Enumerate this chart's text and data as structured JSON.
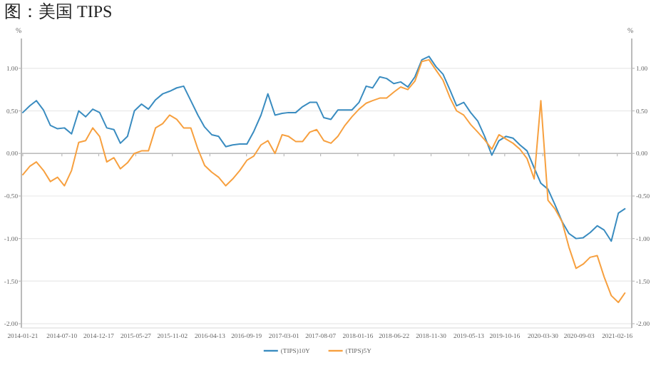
{
  "chart_data": {
    "type": "line",
    "title": "图：美国 TIPS",
    "ylabel": "%",
    "y2label": "%",
    "x": [
      "2014-01-21",
      "2014-02-21",
      "2014-03-21",
      "2014-04-21",
      "2014-05-21",
      "2014-06-21",
      "2014-07-21",
      "2014-08-21",
      "2014-09-21",
      "2014-10-21",
      "2014-11-21",
      "2014-12-21",
      "2015-01-21",
      "2015-02-21",
      "2015-03-21",
      "2015-04-21",
      "2015-05-21",
      "2015-06-21",
      "2015-07-21",
      "2015-08-21",
      "2015-09-21",
      "2015-10-21",
      "2015-11-21",
      "2015-12-21",
      "2016-01-21",
      "2016-02-21",
      "2016-03-21",
      "2016-04-21",
      "2016-05-21",
      "2016-06-21",
      "2016-07-21",
      "2016-08-21",
      "2016-09-21",
      "2016-10-21",
      "2016-11-21",
      "2016-12-21",
      "2017-01-21",
      "2017-02-21",
      "2017-03-21",
      "2017-04-21",
      "2017-05-21",
      "2017-06-21",
      "2017-07-21",
      "2017-08-21",
      "2017-09-21",
      "2017-10-21",
      "2017-11-21",
      "2017-12-21",
      "2018-01-21",
      "2018-02-21",
      "2018-03-21",
      "2018-04-21",
      "2018-05-21",
      "2018-06-21",
      "2018-07-21",
      "2018-08-21",
      "2018-09-21",
      "2018-10-21",
      "2018-11-21",
      "2018-12-21",
      "2019-01-21",
      "2019-02-21",
      "2019-03-21",
      "2019-04-21",
      "2019-05-21",
      "2019-06-21",
      "2019-07-21",
      "2019-08-21",
      "2019-09-21",
      "2019-10-21",
      "2019-11-21",
      "2019-12-21",
      "2020-01-21",
      "2020-02-21",
      "2020-03-21",
      "2020-04-21",
      "2020-05-21",
      "2020-06-21",
      "2020-07-21",
      "2020-08-21",
      "2020-09-21",
      "2020-10-21",
      "2020-11-21",
      "2020-12-21",
      "2021-01-21",
      "2021-02-21",
      "2021-03-21"
    ],
    "series": [
      {
        "name": "(TIPS)10Y",
        "color": "#3a8cc0",
        "values": [
          0.48,
          0.56,
          0.62,
          0.51,
          0.33,
          0.29,
          0.3,
          0.23,
          0.5,
          0.43,
          0.52,
          0.48,
          0.3,
          0.28,
          0.12,
          0.2,
          0.5,
          0.58,
          0.52,
          0.63,
          0.7,
          0.73,
          0.77,
          0.79,
          0.62,
          0.45,
          0.31,
          0.22,
          0.2,
          0.08,
          0.1,
          0.11,
          0.11,
          0.26,
          0.45,
          0.7,
          0.45,
          0.47,
          0.48,
          0.48,
          0.55,
          0.6,
          0.6,
          0.42,
          0.4,
          0.51,
          0.51,
          0.51,
          0.6,
          0.79,
          0.77,
          0.9,
          0.88,
          0.82,
          0.84,
          0.78,
          0.9,
          1.1,
          1.14,
          1.02,
          0.93,
          0.74,
          0.56,
          0.6,
          0.48,
          0.38,
          0.2,
          -0.02,
          0.15,
          0.2,
          0.18,
          0.1,
          0.03,
          -0.17,
          -0.35,
          -0.42,
          -0.6,
          -0.8,
          -0.94,
          -1.0,
          -0.99,
          -0.93,
          -0.85,
          -0.9,
          -1.03,
          -0.7,
          -0.65
        ]
      },
      {
        "name": "(TIPS)5Y",
        "color": "#f7a03f",
        "values": [
          -0.25,
          -0.15,
          -0.1,
          -0.2,
          -0.33,
          -0.28,
          -0.38,
          -0.2,
          0.13,
          0.15,
          0.3,
          0.2,
          -0.1,
          -0.05,
          -0.18,
          -0.11,
          0.0,
          0.03,
          0.03,
          0.3,
          0.35,
          0.45,
          0.4,
          0.3,
          0.3,
          0.05,
          -0.14,
          -0.22,
          -0.28,
          -0.38,
          -0.3,
          -0.2,
          -0.08,
          -0.03,
          0.1,
          0.15,
          0.0,
          0.22,
          0.2,
          0.14,
          0.14,
          0.25,
          0.28,
          0.15,
          0.12,
          0.2,
          0.33,
          0.43,
          0.52,
          0.59,
          0.62,
          0.65,
          0.65,
          0.72,
          0.78,
          0.75,
          0.85,
          1.08,
          1.1,
          0.98,
          0.86,
          0.65,
          0.5,
          0.45,
          0.34,
          0.25,
          0.16,
          0.05,
          0.22,
          0.17,
          0.12,
          0.05,
          -0.06,
          -0.3,
          0.62,
          -0.55,
          -0.65,
          -0.8,
          -1.1,
          -1.35,
          -1.3,
          -1.22,
          -1.2,
          -1.45,
          -1.67,
          -1.75,
          -1.64
        ]
      }
    ],
    "xlim": [
      "2014-01-15",
      "2021-04-20"
    ],
    "xticks": [
      "2014-01-21",
      "2014-07-10",
      "2014-12-17",
      "2015-05-27",
      "2015-11-02",
      "2016-04-13",
      "2016-09-19",
      "2017-03-01",
      "2017-08-07",
      "2018-01-16",
      "2018-06-22",
      "2018-11-30",
      "2019-05-13",
      "2019-10-16",
      "2020-03-30",
      "2020-09-03",
      "2021-02-16"
    ],
    "ylim": [
      -2.05,
      1.35
    ],
    "yticks": [
      {
        "value": -2,
        "label": "-2.00"
      },
      {
        "value": -1.5,
        "label": "-1.50"
      },
      {
        "value": -1,
        "label": "-1.00"
      },
      {
        "value": -0.5,
        "label": "-0.50"
      },
      {
        "value": 0,
        "label": "0.00"
      },
      {
        "value": 0.5,
        "label": "0.50"
      },
      {
        "value": 1,
        "label": "1.00"
      }
    ],
    "y2lim": [
      -2.05,
      1.35
    ],
    "y2ticks": [
      {
        "value": -2,
        "label": "-2.00"
      },
      {
        "value": -1.5,
        "label": "-1.50"
      },
      {
        "value": -1,
        "label": "-1.00"
      },
      {
        "value": -0.5,
        "label": "-0.50"
      },
      {
        "value": 0,
        "label": "0.00"
      },
      {
        "value": 0.5,
        "label": "0.50"
      },
      {
        "value": 1,
        "label": "1.00"
      }
    ],
    "grid": "y",
    "legend": "bottom",
    "marker": "none",
    "line_style": "solid"
  }
}
